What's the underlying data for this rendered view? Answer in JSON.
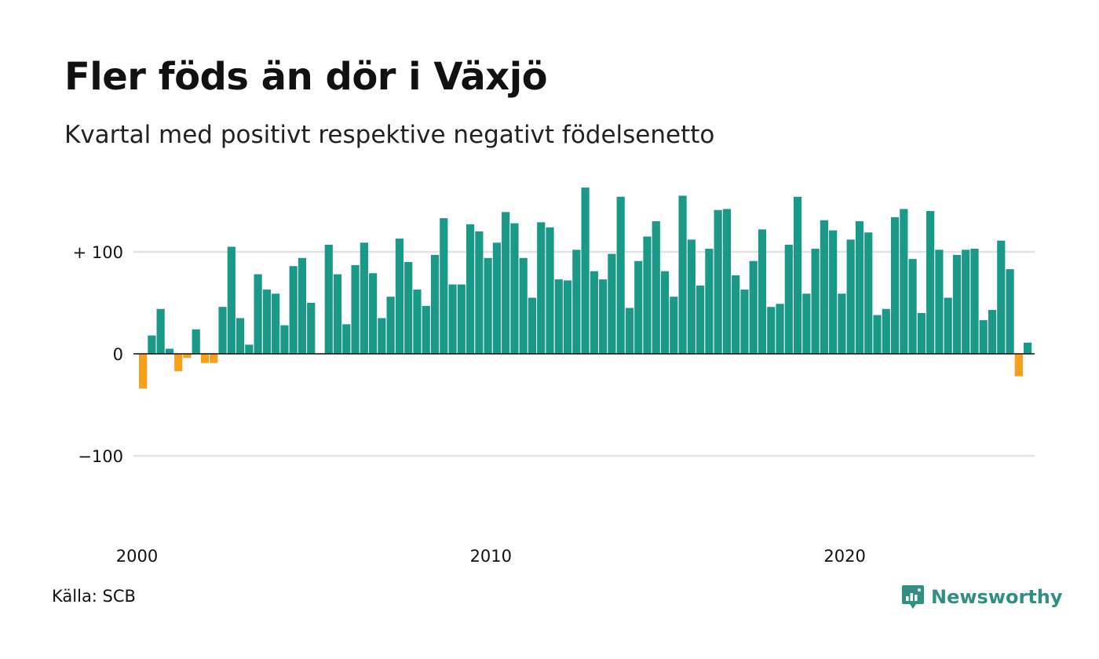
{
  "title": "Fler föds än dör i Växjö",
  "subtitle": "Kvartal med positivt respektive negativt födelsenetto",
  "source": "Källa: SCB",
  "brand": {
    "name": "Newsworthy",
    "icon": "newsworthy-logo-icon"
  },
  "colors": {
    "positive": "#1a9988",
    "negative": "#f59f1a",
    "grid": "#e2e2e2",
    "zero": "#111111"
  },
  "chart_data": {
    "type": "bar",
    "title": "Fler föds än dör i Växjö",
    "subtitle": "Kvartal med positivt respektive negativt födelsenetto",
    "xlabel": "",
    "ylabel": "",
    "ylim": [
      -150,
      165
    ],
    "yticks": [
      {
        "value": 100,
        "label": "+ 100"
      },
      {
        "value": 0,
        "label": "0"
      },
      {
        "value": -100,
        "label": "−100"
      }
    ],
    "xticks": [
      {
        "value": 2000,
        "label": "2000"
      },
      {
        "value": 2010,
        "label": "2010"
      },
      {
        "value": 2020,
        "label": "2020"
      }
    ],
    "grid": true,
    "x_start": "2000 Q1",
    "values": [
      -34,
      18,
      44,
      5,
      -17,
      -4,
      24,
      -9,
      -9,
      46,
      105,
      35,
      9,
      78,
      63,
      59,
      28,
      86,
      94,
      50,
      0.5,
      107,
      78,
      29,
      87,
      109,
      79,
      35,
      56,
      113,
      90,
      63,
      47,
      97,
      133,
      68,
      68,
      127,
      120,
      94,
      109,
      139,
      128,
      94,
      55,
      129,
      124,
      73,
      72,
      102,
      163,
      81,
      73,
      98,
      154,
      45,
      91,
      115,
      130,
      81,
      56,
      155,
      112,
      67,
      103,
      141,
      142,
      77,
      63,
      91,
      122,
      46,
      49,
      107,
      154,
      59,
      103,
      131,
      121,
      59,
      112,
      130,
      119,
      38,
      44,
      134,
      142,
      93,
      40,
      140,
      102,
      55,
      97,
      102,
      103,
      33,
      43,
      111,
      83,
      -22,
      11
    ]
  }
}
